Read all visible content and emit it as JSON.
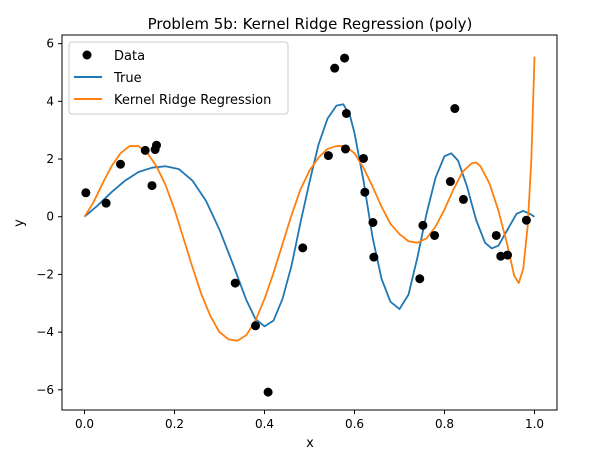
{
  "chart_data": {
    "type": "line",
    "title": "Problem 5b: Kernel Ridge Regression (poly)",
    "xlabel": "x",
    "ylabel": "y",
    "xlim": [
      -0.05,
      1.05
    ],
    "ylim": [
      -6.7,
      6.3
    ],
    "x_ticks": [
      0.0,
      0.2,
      0.4,
      0.6,
      0.8,
      1.0
    ],
    "x_tick_labels": [
      "0.0",
      "0.2",
      "0.4",
      "0.6",
      "0.8",
      "1.0"
    ],
    "y_ticks": [
      -6,
      -4,
      -2,
      0,
      2,
      4,
      6
    ],
    "y_tick_labels": [
      "−6",
      "−4",
      "−2",
      "0",
      "2",
      "4",
      "6"
    ],
    "grid": false,
    "legend_position": "top-left",
    "series": [
      {
        "name": "Data",
        "kind": "scatter",
        "color": "#000000",
        "points": [
          [
            0.003,
            0.83
          ],
          [
            0.048,
            0.47
          ],
          [
            0.08,
            1.82
          ],
          [
            0.135,
            2.3
          ],
          [
            0.15,
            1.08
          ],
          [
            0.157,
            2.33
          ],
          [
            0.16,
            2.48
          ],
          [
            0.335,
            -2.3
          ],
          [
            0.38,
            -3.78
          ],
          [
            0.408,
            -6.08
          ],
          [
            0.485,
            -1.08
          ],
          [
            0.542,
            2.12
          ],
          [
            0.556,
            5.15
          ],
          [
            0.578,
            5.5
          ],
          [
            0.58,
            2.35
          ],
          [
            0.582,
            3.58
          ],
          [
            0.62,
            2.02
          ],
          [
            0.623,
            0.85
          ],
          [
            0.641,
            -0.2
          ],
          [
            0.643,
            -1.4
          ],
          [
            0.745,
            -2.15
          ],
          [
            0.752,
            -0.3
          ],
          [
            0.778,
            -0.65
          ],
          [
            0.813,
            1.22
          ],
          [
            0.823,
            3.75
          ],
          [
            0.842,
            0.6
          ],
          [
            0.915,
            -0.65
          ],
          [
            0.925,
            -1.37
          ],
          [
            0.94,
            -1.33
          ],
          [
            0.982,
            -0.12
          ]
        ]
      },
      {
        "name": "True",
        "kind": "line",
        "color": "#1f77b4",
        "points": [
          [
            0.0,
            0.0
          ],
          [
            0.03,
            0.4
          ],
          [
            0.06,
            0.85
          ],
          [
            0.09,
            1.25
          ],
          [
            0.12,
            1.55
          ],
          [
            0.15,
            1.7
          ],
          [
            0.18,
            1.75
          ],
          [
            0.21,
            1.65
          ],
          [
            0.24,
            1.25
          ],
          [
            0.27,
            0.55
          ],
          [
            0.3,
            -0.45
          ],
          [
            0.33,
            -1.65
          ],
          [
            0.36,
            -2.9
          ],
          [
            0.38,
            -3.55
          ],
          [
            0.4,
            -3.8
          ],
          [
            0.42,
            -3.6
          ],
          [
            0.44,
            -2.85
          ],
          [
            0.46,
            -1.7
          ],
          [
            0.48,
            -0.2
          ],
          [
            0.5,
            1.2
          ],
          [
            0.52,
            2.5
          ],
          [
            0.54,
            3.4
          ],
          [
            0.56,
            3.85
          ],
          [
            0.575,
            3.9
          ],
          [
            0.59,
            3.5
          ],
          [
            0.6,
            2.9
          ],
          [
            0.62,
            1.25
          ],
          [
            0.64,
            -0.7
          ],
          [
            0.66,
            -2.15
          ],
          [
            0.68,
            -2.95
          ],
          [
            0.7,
            -3.2
          ],
          [
            0.72,
            -2.7
          ],
          [
            0.74,
            -1.4
          ],
          [
            0.76,
            0.1
          ],
          [
            0.78,
            1.35
          ],
          [
            0.8,
            2.1
          ],
          [
            0.815,
            2.2
          ],
          [
            0.83,
            1.95
          ],
          [
            0.85,
            1.05
          ],
          [
            0.87,
            -0.1
          ],
          [
            0.89,
            -0.9
          ],
          [
            0.905,
            -1.1
          ],
          [
            0.92,
            -1.0
          ],
          [
            0.94,
            -0.45
          ],
          [
            0.96,
            0.1
          ],
          [
            0.975,
            0.2
          ],
          [
            0.99,
            0.1
          ],
          [
            1.0,
            0.0
          ]
        ]
      },
      {
        "name": "Kernel Ridge Regression",
        "kind": "line",
        "color": "#ff7f0e",
        "points": [
          [
            0.0,
            0.0
          ],
          [
            0.02,
            0.5
          ],
          [
            0.04,
            1.15
          ],
          [
            0.06,
            1.75
          ],
          [
            0.08,
            2.2
          ],
          [
            0.1,
            2.45
          ],
          [
            0.12,
            2.45
          ],
          [
            0.14,
            2.2
          ],
          [
            0.16,
            1.75
          ],
          [
            0.18,
            1.1
          ],
          [
            0.2,
            0.25
          ],
          [
            0.22,
            -0.75
          ],
          [
            0.24,
            -1.75
          ],
          [
            0.26,
            -2.7
          ],
          [
            0.28,
            -3.45
          ],
          [
            0.3,
            -4.0
          ],
          [
            0.32,
            -4.25
          ],
          [
            0.34,
            -4.3
          ],
          [
            0.36,
            -4.1
          ],
          [
            0.38,
            -3.6
          ],
          [
            0.4,
            -2.85
          ],
          [
            0.42,
            -1.95
          ],
          [
            0.44,
            -0.95
          ],
          [
            0.46,
            0.05
          ],
          [
            0.48,
            0.95
          ],
          [
            0.5,
            1.6
          ],
          [
            0.52,
            2.05
          ],
          [
            0.54,
            2.35
          ],
          [
            0.56,
            2.45
          ],
          [
            0.58,
            2.45
          ],
          [
            0.6,
            2.2
          ],
          [
            0.62,
            1.7
          ],
          [
            0.64,
            1.05
          ],
          [
            0.66,
            0.35
          ],
          [
            0.68,
            -0.25
          ],
          [
            0.7,
            -0.6
          ],
          [
            0.72,
            -0.85
          ],
          [
            0.74,
            -0.9
          ],
          [
            0.76,
            -0.75
          ],
          [
            0.78,
            -0.35
          ],
          [
            0.8,
            0.25
          ],
          [
            0.82,
            0.95
          ],
          [
            0.84,
            1.55
          ],
          [
            0.86,
            1.85
          ],
          [
            0.87,
            1.88
          ],
          [
            0.88,
            1.75
          ],
          [
            0.9,
            1.15
          ],
          [
            0.92,
            0.2
          ],
          [
            0.94,
            -1.0
          ],
          [
            0.955,
            -2.05
          ],
          [
            0.965,
            -2.3
          ],
          [
            0.975,
            -1.8
          ],
          [
            0.985,
            -0.3
          ],
          [
            0.993,
            2.0
          ],
          [
            1.0,
            5.55
          ]
        ]
      }
    ]
  }
}
